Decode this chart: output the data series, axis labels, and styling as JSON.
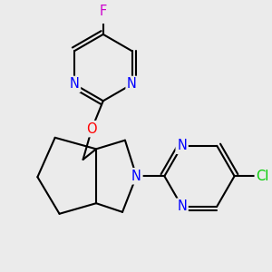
{
  "bg_color": "#ebebeb",
  "atom_colors": {
    "N": "#0000ff",
    "O": "#ff0000",
    "F": "#cc00cc",
    "Cl": "#00cc00"
  },
  "bond_color": "#000000",
  "bond_width": 1.5,
  "font_size": 10.5
}
